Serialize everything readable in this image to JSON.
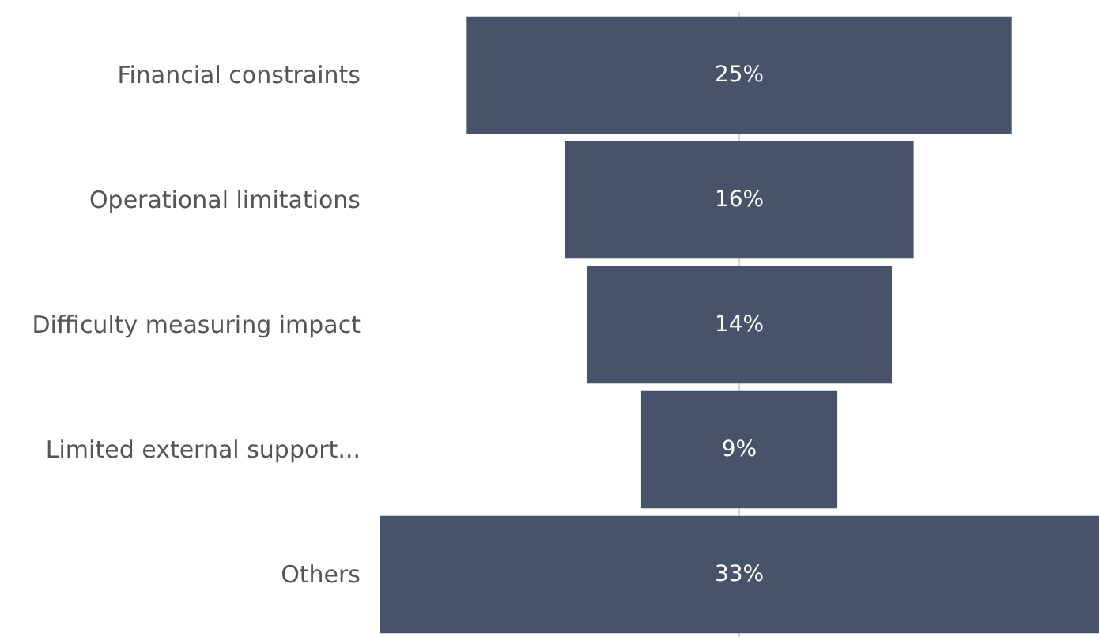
{
  "chart_data": {
    "type": "other",
    "categories": [
      "Financial constraints",
      "Operational limitations",
      "Difficulty measuring impact",
      "Limited external support...",
      "Others"
    ],
    "values": [
      25,
      16,
      14,
      9,
      33
    ],
    "value_labels": [
      "25%",
      "16%",
      "14%",
      "9%",
      "33%"
    ],
    "color": "#465369"
  }
}
